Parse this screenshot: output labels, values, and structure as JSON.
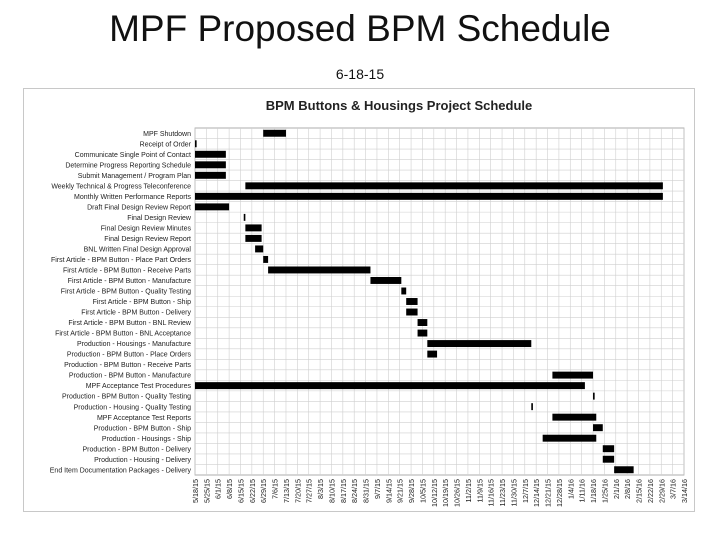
{
  "slide": {
    "title": "MPF Proposed BPM Schedule",
    "date": "6-18-15"
  },
  "chart_data": {
    "type": "gantt",
    "title": "BPM Buttons & Housings Project Schedule",
    "xlabel": "",
    "ylabel": "",
    "grid": true,
    "x_tick_labels": [
      "5/18/15",
      "5/25/15",
      "6/1/15",
      "6/8/15",
      "6/15/15",
      "6/22/15",
      "6/29/15",
      "7/6/15",
      "7/13/15",
      "7/20/15",
      "7/27/15",
      "8/3/15",
      "8/10/15",
      "8/17/15",
      "8/24/15",
      "8/31/15",
      "9/7/15",
      "9/14/15",
      "9/21/15",
      "9/28/15",
      "10/5/15",
      "10/12/15",
      "10/19/15",
      "10/26/15",
      "11/2/15",
      "11/9/15",
      "11/16/15",
      "11/23/15",
      "11/30/15",
      "12/7/15",
      "12/14/15",
      "12/21/15",
      "12/28/15",
      "1/4/16",
      "1/11/16",
      "1/18/16",
      "1/25/16",
      "2/1/16",
      "2/8/16",
      "2/15/16",
      "2/22/16",
      "2/29/16",
      "3/7/16",
      "3/14/16"
    ],
    "tasks": [
      {
        "name": "MPF Shutdown",
        "start": "2015-06-29",
        "end": "2015-07-13"
      },
      {
        "name": "Receipt of Order",
        "start": "2015-05-18",
        "end": "2015-05-19"
      },
      {
        "name": "Communicate Single Point of Contact",
        "start": "2015-05-18",
        "end": "2015-06-06"
      },
      {
        "name": "Determine Progress Reporting Schedule",
        "start": "2015-05-18",
        "end": "2015-06-06"
      },
      {
        "name": "Submit Management / Program Plan",
        "start": "2015-05-18",
        "end": "2015-06-06"
      },
      {
        "name": "Weekly Technical & Progress Teleconference",
        "start": "2015-06-18",
        "end": "2016-03-01"
      },
      {
        "name": "Monthly Written Performance Reports",
        "start": "2015-05-18",
        "end": "2016-03-01"
      },
      {
        "name": "Draft Final Design Review Report",
        "start": "2015-05-18",
        "end": "2015-06-08"
      },
      {
        "name": "Final Design Review",
        "start": "2015-06-17",
        "end": "2015-06-18"
      },
      {
        "name": "Final Design Review Minutes",
        "start": "2015-06-18",
        "end": "2015-06-28"
      },
      {
        "name": "Final Design Review Report",
        "start": "2015-06-18",
        "end": "2015-06-28"
      },
      {
        "name": "BNL Written Final Design Approval",
        "start": "2015-06-24",
        "end": "2015-06-29"
      },
      {
        "name": "First Article - BPM Button - Place Part Orders",
        "start": "2015-06-29",
        "end": "2015-07-02"
      },
      {
        "name": "First Article - BPM Button - Receive Parts",
        "start": "2015-07-02",
        "end": "2015-09-03"
      },
      {
        "name": "First Article - BPM Button - Manufacture",
        "start": "2015-09-03",
        "end": "2015-09-22"
      },
      {
        "name": "First Article - BPM Button - Quality Testing",
        "start": "2015-09-22",
        "end": "2015-09-25"
      },
      {
        "name": "First Article - BPM Button - Ship",
        "start": "2015-09-25",
        "end": "2015-10-02"
      },
      {
        "name": "First Article - BPM Button - Delivery",
        "start": "2015-09-25",
        "end": "2015-10-02"
      },
      {
        "name": "First Article - BPM Button - BNL Review",
        "start": "2015-10-02",
        "end": "2015-10-08"
      },
      {
        "name": "First Article - BPM Button - BNL Acceptance",
        "start": "2015-10-02",
        "end": "2015-10-08"
      },
      {
        "name": "Production - Housings - Manufacture",
        "start": "2015-10-08",
        "end": "2015-12-11"
      },
      {
        "name": "Production - BPM Button - Place Orders",
        "start": "2015-10-08",
        "end": "2015-10-14"
      },
      {
        "name": "Production - BPM Button - Receive Parts",
        "start": "",
        "end": ""
      },
      {
        "name": "Production - BPM Button - Manufacture",
        "start": "2015-12-24",
        "end": "2016-01-18"
      },
      {
        "name": "MPF Acceptance Test Procedures",
        "start": "2015-05-18",
        "end": "2016-01-13"
      },
      {
        "name": "Production - BPM Button - Quality Testing",
        "start": "2016-01-18",
        "end": "2016-01-19"
      },
      {
        "name": "Production - Housing - Quality Testing",
        "start": "2015-12-11",
        "end": "2015-12-12"
      },
      {
        "name": "MPF Acceptance Test Reports",
        "start": "2015-12-24",
        "end": "2016-01-20"
      },
      {
        "name": "Production - BPM Button - Ship",
        "start": "2016-01-18",
        "end": "2016-01-24"
      },
      {
        "name": "Production - Housings - Ship",
        "start": "2015-12-18",
        "end": "2016-01-20"
      },
      {
        "name": "Production - BPM Button - Delivery",
        "start": "2016-01-24",
        "end": "2016-01-31"
      },
      {
        "name": "Production - Housing - Delivery",
        "start": "2016-01-24",
        "end": "2016-01-31"
      },
      {
        "name": "End Item Documentation Packages - Delivery",
        "start": "2016-01-31",
        "end": "2016-02-12"
      }
    ],
    "colors": {
      "bar": "#000000",
      "grid": "#cfcfcf",
      "frame": "#c8c8c8",
      "text": "#222222"
    }
  }
}
